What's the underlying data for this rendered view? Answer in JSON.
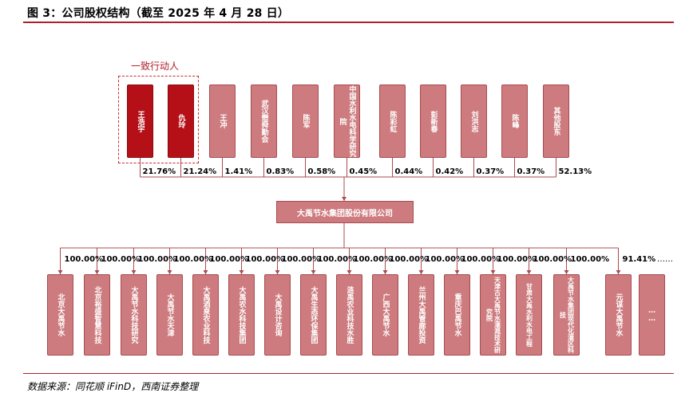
{
  "title": "图 3：公司股权结构（截至 2025 年 4 月 28 日）",
  "group_label": "一致行动人",
  "company": "大禹节水集团股份有限公司",
  "shareholders": [
    {
      "name": "王浩宇",
      "pct": "21.76%",
      "highlight": true
    },
    {
      "name": "仇玲",
      "pct": "21.24%",
      "highlight": true
    },
    {
      "name": "王冲",
      "pct": "1.41%",
      "highlight": false
    },
    {
      "name": "武汉懋舜勤会",
      "pct": "0.83%",
      "highlight": false
    },
    {
      "name": "陈军",
      "pct": "0.58%",
      "highlight": false
    },
    {
      "name": "中国水利水电科学研究院",
      "pct": "0.45%",
      "highlight": false
    },
    {
      "name": "陈彩虹",
      "pct": "0.44%",
      "highlight": false
    },
    {
      "name": "彭新春",
      "pct": "0.42%",
      "highlight": false
    },
    {
      "name": "刘洪志",
      "pct": "0.37%",
      "highlight": false
    },
    {
      "name": "陈峰",
      "pct": "0.37%",
      "highlight": false
    },
    {
      "name": "其他股东",
      "pct": "52.13%",
      "highlight": false
    }
  ],
  "subsidiaries": [
    {
      "name": "北京大禹节水",
      "pct": "100.00%"
    },
    {
      "name": "北京裕盛智慧科技",
      "pct": "100.00%"
    },
    {
      "name": "大禹节水科技研究",
      "pct": "100.00%"
    },
    {
      "name": "大禹节水天津",
      "pct": "100.00%"
    },
    {
      "name": "大禹酒泉农业科技",
      "pct": "100.00%"
    },
    {
      "name": "大禹农水科技集团",
      "pct": "100.00%"
    },
    {
      "name": "大禹设计咨询",
      "pct": "100.00%"
    },
    {
      "name": "大禹生态环保集团",
      "pct": "100.00%"
    },
    {
      "name": "涟禹农业科技水胜",
      "pct": "100.00%"
    },
    {
      "name": "广西大禹节水",
      "pct": "100.00%"
    },
    {
      "name": "兰州大禹管廊投资",
      "pct": "100.00%"
    },
    {
      "name": "重庆巴禹节水",
      "pct": "100.00%"
    },
    {
      "name": "天津古大禹节水灌溉技术研究院",
      "pct": "100.00%"
    },
    {
      "name": "甘肃大禹水利水电工程",
      "pct": "100.00%"
    },
    {
      "name": "大禹节水集团现代化灌区科技",
      "pct": "100.00%"
    },
    {
      "name": "元谋大禹节水",
      "pct": "91.41%"
    },
    {
      "name": "……",
      "pct": "……"
    }
  ],
  "source": "数据来源：同花顺 iFinD，西南证券整理",
  "colors": {
    "accent": "#b51017",
    "box": "#cd7b7e",
    "line": "#a84c51"
  }
}
